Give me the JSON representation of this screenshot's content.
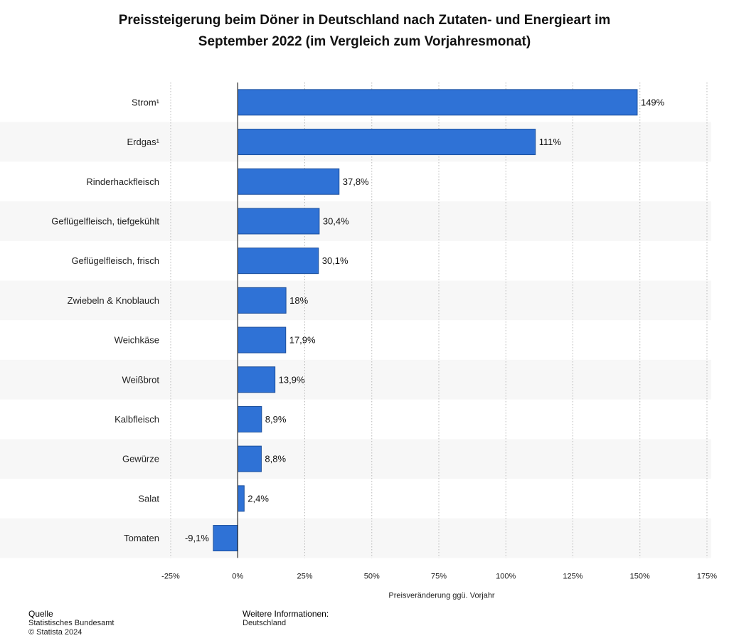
{
  "title_line1": "Preissteigerung beim Döner in Deutschland nach Zutaten- und Energieart im",
  "title_line2": "September 2022 (im Vergleich zum Vorjahresmonat)",
  "footer": {
    "source_heading": "Quelle",
    "source_line1": "Statistisches Bundesamt",
    "source_line2": "© Statista 2024",
    "info_heading": "Weitere Informationen:",
    "info_line1": "Deutschland"
  },
  "colors": {
    "bar": "#2f72d6",
    "bar_stroke": "#1b4f9c",
    "stripe": "#f7f7f7",
    "grid": "#b8b8b8",
    "zero_line": "#333333"
  },
  "chart_data": {
    "type": "bar",
    "orientation": "horizontal",
    "categories": [
      "Strom¹",
      "Erdgas¹",
      "Rinderhackfleisch",
      "Geflügelfleisch, tiefgekühlt",
      "Geflügelfleisch, frisch",
      "Zwiebeln & Knoblauch",
      "Weichkäse",
      "Weißbrot",
      "Kalbfleisch",
      "Gewürze",
      "Salat",
      "Tomaten"
    ],
    "values": [
      149,
      111,
      37.8,
      30.4,
      30.1,
      18,
      17.9,
      13.9,
      8.9,
      8.8,
      2.4,
      -9.1
    ],
    "value_labels": [
      "149%",
      "111%",
      "37,8%",
      "30,4%",
      "30,1%",
      "18%",
      "17,9%",
      "13,9%",
      "8,9%",
      "8,8%",
      "2,4%",
      "-9,1%"
    ],
    "xlabel": "Preisveränderung ggü. Vorjahr",
    "ylabel": "",
    "xlim": [
      -25,
      175
    ],
    "ticks": [
      -25,
      0,
      25,
      50,
      75,
      100,
      125,
      150,
      175
    ],
    "tick_labels": [
      "-25%",
      "0%",
      "25%",
      "50%",
      "75%",
      "100%",
      "125%",
      "150%",
      "175%"
    ],
    "grid": true,
    "legend": "none"
  }
}
